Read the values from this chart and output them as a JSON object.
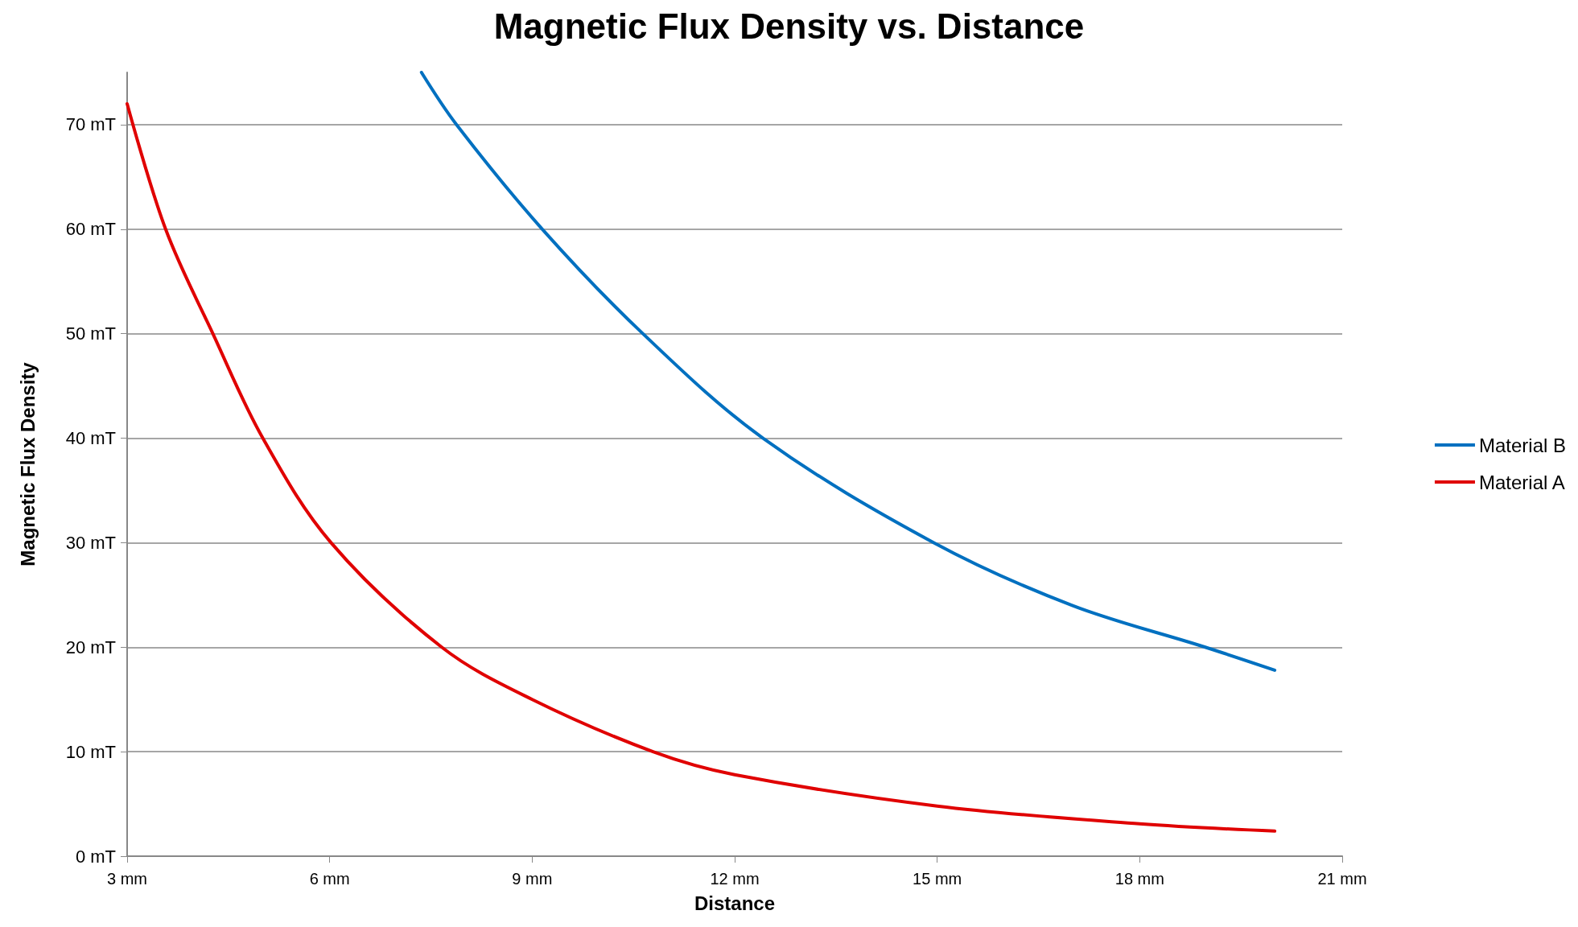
{
  "chart_data": {
    "type": "line",
    "title": "Magnetic Flux Density vs. Distance",
    "xlabel": "Distance",
    "ylabel": "Magnetic Flux Density",
    "xlim": [
      3,
      21
    ],
    "xticks": [
      {
        "value": 3,
        "label": "3 mm"
      },
      {
        "value": 6,
        "label": "6 mm"
      },
      {
        "value": 9,
        "label": "9 mm"
      },
      {
        "value": 12,
        "label": "12 mm"
      },
      {
        "value": 15,
        "label": "15 mm"
      },
      {
        "value": 18,
        "label": "18 mm"
      },
      {
        "value": 21,
        "label": "21 mm"
      }
    ],
    "ylim": [
      0,
      75
    ],
    "yticks": [
      {
        "value": 0,
        "label": "0 mT"
      },
      {
        "value": 10,
        "label": "10 mT"
      },
      {
        "value": 20,
        "label": "20 mT"
      },
      {
        "value": 30,
        "label": "30 mT"
      },
      {
        "value": 40,
        "label": "40 mT"
      },
      {
        "value": 50,
        "label": "50 mT"
      },
      {
        "value": 60,
        "label": "60 mT"
      },
      {
        "value": 70,
        "label": "70 mT"
      }
    ],
    "grid": "y",
    "legend": "right",
    "marker": "none",
    "line_style": "solid",
    "series": [
      {
        "name": "Material B",
        "color": "#0070c0",
        "x": [
          7.36,
          7.88,
          9.15,
          10.64,
          12.42,
          14.95,
          17,
          18.97,
          20
        ],
        "values": [
          75,
          70,
          60,
          50,
          40,
          30,
          24,
          20,
          17.8
        ]
      },
      {
        "name": "Material A",
        "color": "#e00000",
        "x": [
          3,
          3.57,
          4.27,
          5.01,
          6.02,
          7.66,
          9,
          10.79,
          12,
          15,
          18,
          20
        ],
        "values": [
          72,
          60,
          50,
          40,
          30,
          20,
          15,
          10,
          7.8,
          4.8,
          3.1,
          2.4
        ]
      }
    ]
  }
}
